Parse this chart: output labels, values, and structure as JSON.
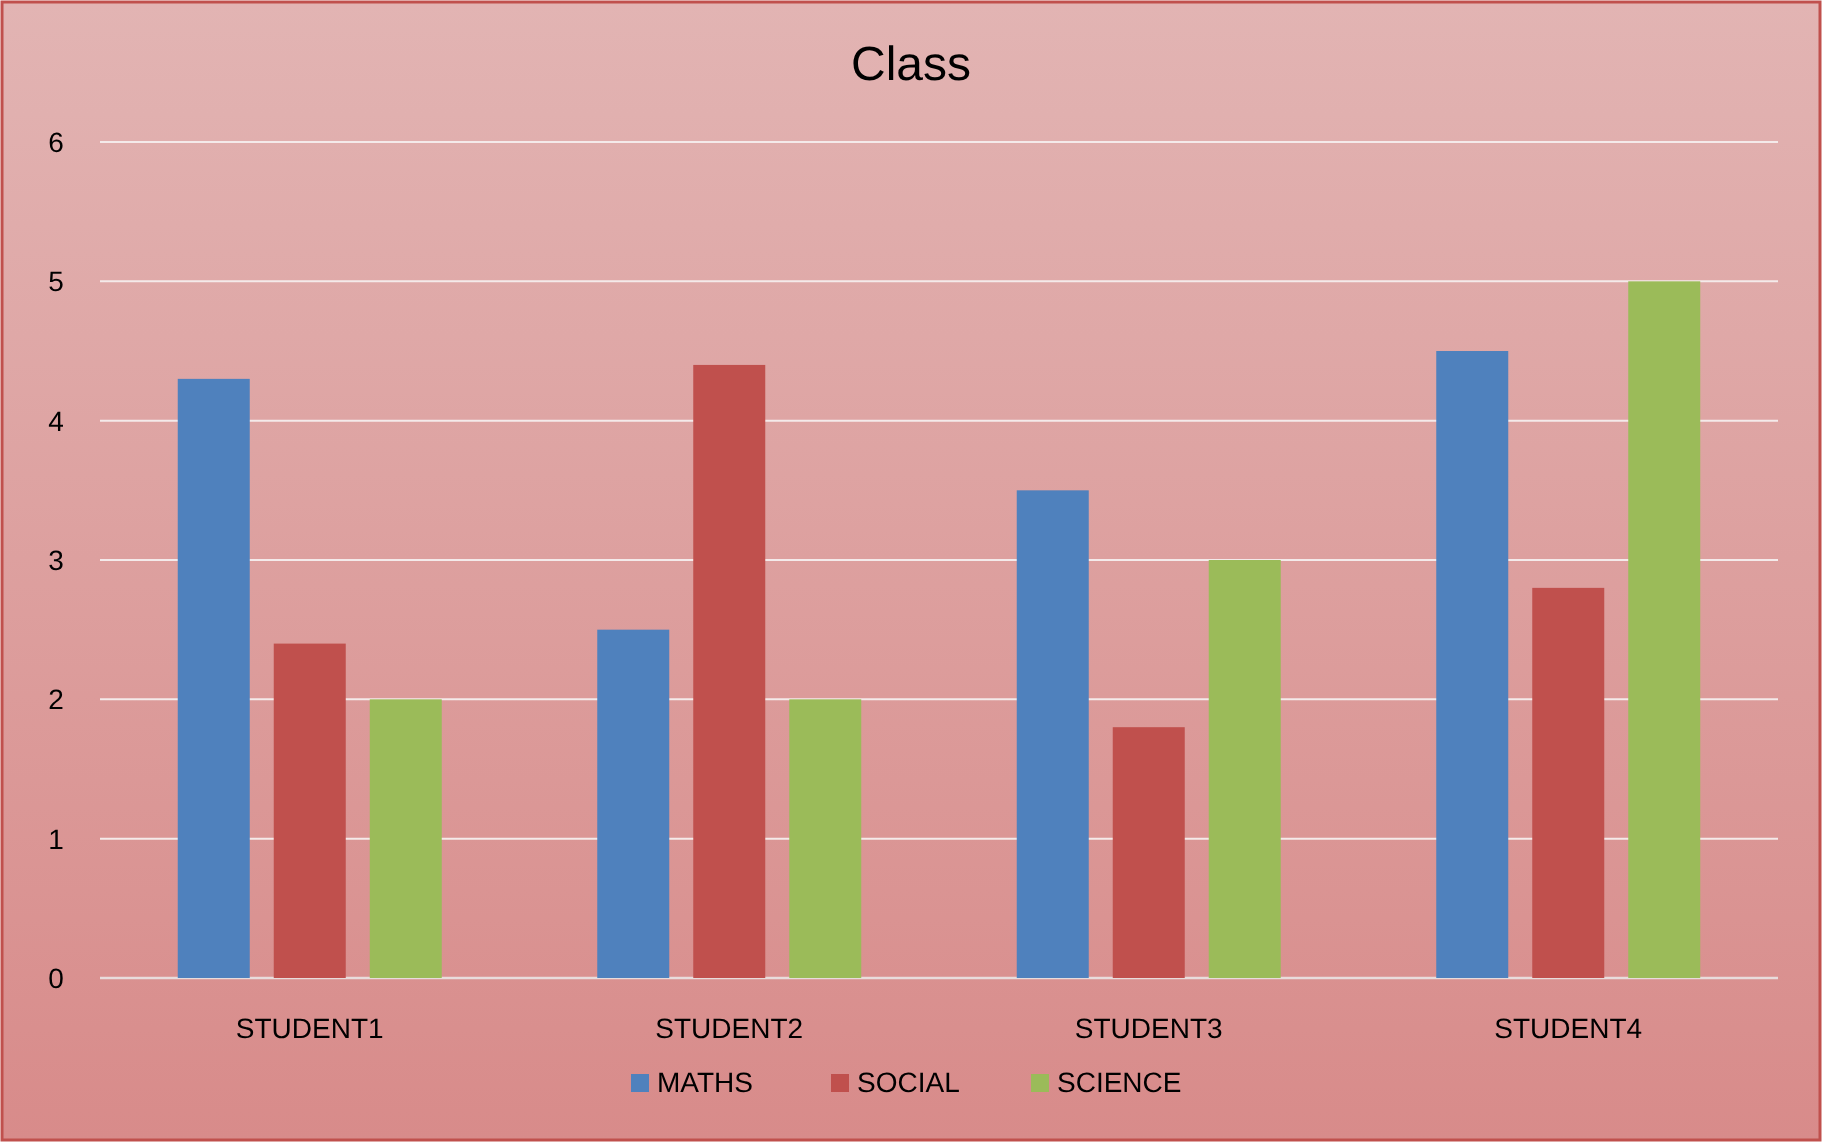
{
  "chart_data": {
    "type": "bar",
    "title": "Class",
    "categories": [
      "STUDENT1",
      "STUDENT2",
      "STUDENT3",
      "STUDENT4"
    ],
    "series": [
      {
        "name": "MATHS",
        "color": "#4f81bd",
        "values": [
          4.3,
          2.5,
          3.5,
          4.5
        ]
      },
      {
        "name": "SOCIAL",
        "color": "#c0504d",
        "values": [
          2.4,
          4.4,
          1.8,
          2.8
        ]
      },
      {
        "name": "SCIENCE",
        "color": "#9bbb59",
        "values": [
          2,
          2,
          3,
          5
        ]
      }
    ],
    "ylim": [
      0,
      6
    ],
    "yticks": [
      0,
      1,
      2,
      3,
      4,
      5,
      6
    ],
    "grid": "y",
    "legend": "bottom"
  }
}
